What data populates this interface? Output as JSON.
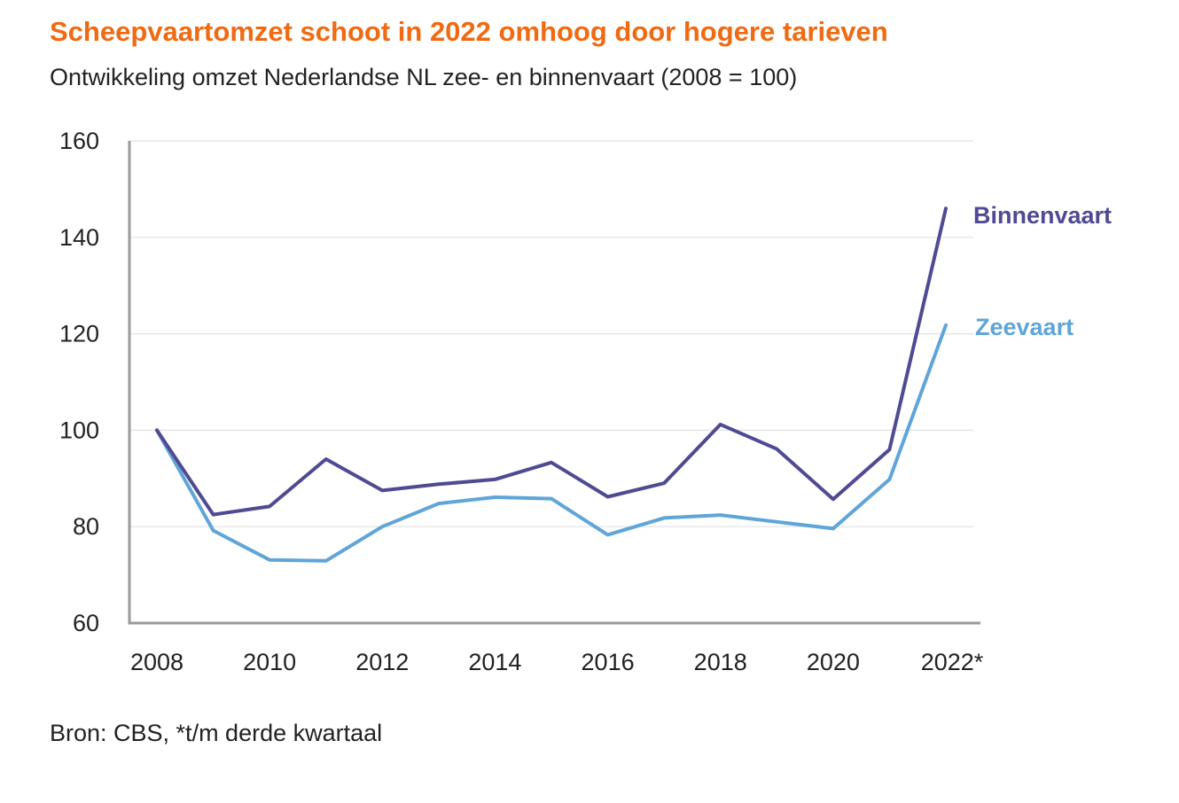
{
  "title": "Scheepvaartomzet schoot in 2022 omhoog door hogere tarieven",
  "subtitle": "Ontwikkeling omzet Nederlandse NL zee- en binnenvaart  (2008 = 100)",
  "source": "Bron: CBS, *t/m derde kwartaal",
  "colors": {
    "title": "#f06a12",
    "binnenvaart": "#4f4a93",
    "zeevaart": "#5fa5d8",
    "grid": "#e2e2e2",
    "axis": "#9a9a9a"
  },
  "chart_data": {
    "type": "line",
    "x": [
      2008,
      2009,
      2010,
      2011,
      2012,
      2013,
      2014,
      2015,
      2016,
      2017,
      2018,
      2019,
      2020,
      2021,
      2022
    ],
    "x_tick_values": [
      2008,
      2010,
      2012,
      2014,
      2016,
      2018,
      2020,
      2022
    ],
    "x_tick_labels": [
      "2008",
      "2010",
      "2012",
      "2014",
      "2016",
      "2018",
      "2020",
      "2022*"
    ],
    "y_ticks": [
      60,
      80,
      100,
      120,
      140,
      160
    ],
    "ylim": [
      60,
      160
    ],
    "grid": true,
    "series": [
      {
        "name": "Binnenvaart",
        "color": "#4f4a93",
        "values": [
          100,
          82.5,
          84.2,
          94,
          87.5,
          88.8,
          89.8,
          93.3,
          86.2,
          89,
          101.2,
          96.1,
          85.7,
          96,
          146
        ]
      },
      {
        "name": "Zeevaart",
        "color": "#5fa5d8",
        "values": [
          100,
          79.2,
          73.1,
          72.9,
          80,
          84.8,
          86.1,
          85.8,
          78.3,
          81.8,
          82.4,
          81,
          79.6,
          89.8,
          121.8
        ]
      }
    ]
  }
}
